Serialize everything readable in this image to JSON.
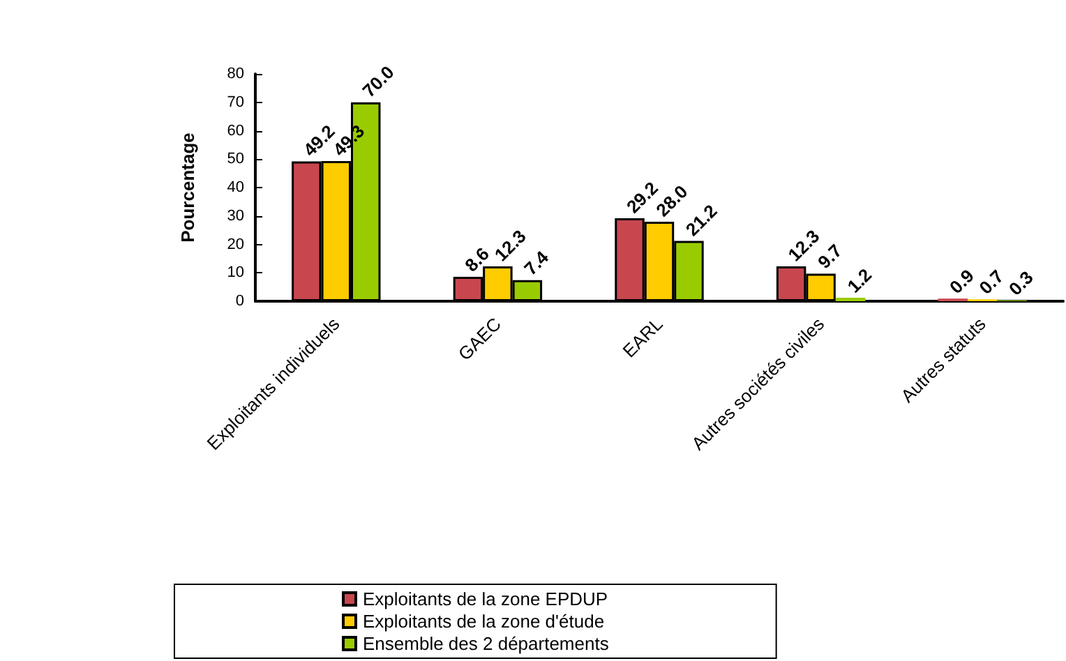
{
  "chart_data": {
    "type": "bar",
    "ylabel": "Pourcentage",
    "categories": [
      "Exploitants individuels",
      "GAEC",
      "EARL",
      "Autres sociétés civiles",
      "Autres statuts"
    ],
    "series": [
      {
        "name": "Exploitants de la zone EPDUP",
        "color": "#c8474f",
        "values": [
          49.2,
          8.6,
          29.2,
          12.3,
          0.9
        ],
        "value_labels": [
          "49.2",
          "8.6",
          "29.2",
          "12.3",
          "0.9"
        ]
      },
      {
        "name": "Exploitants de la zone d'étude",
        "color": "#ffcc00",
        "values": [
          49.3,
          12.3,
          28,
          9.7,
          0.7
        ],
        "value_labels": [
          "49.3",
          "12.3",
          "28.0",
          "9.7",
          "0.7"
        ]
      },
      {
        "name": "Ensemble des 2 départements",
        "color": "#99cc00",
        "values": [
          70,
          7.4,
          21.2,
          1.2,
          0.3
        ],
        "value_labels": [
          "70.0",
          "7.4",
          "21.2",
          "1.2",
          "0.3"
        ]
      }
    ],
    "ylim": [
      0,
      80
    ],
    "yticks": [
      0,
      10,
      20,
      30,
      40,
      50,
      60,
      70,
      80
    ],
    "grid": false,
    "legend": "bottom"
  }
}
